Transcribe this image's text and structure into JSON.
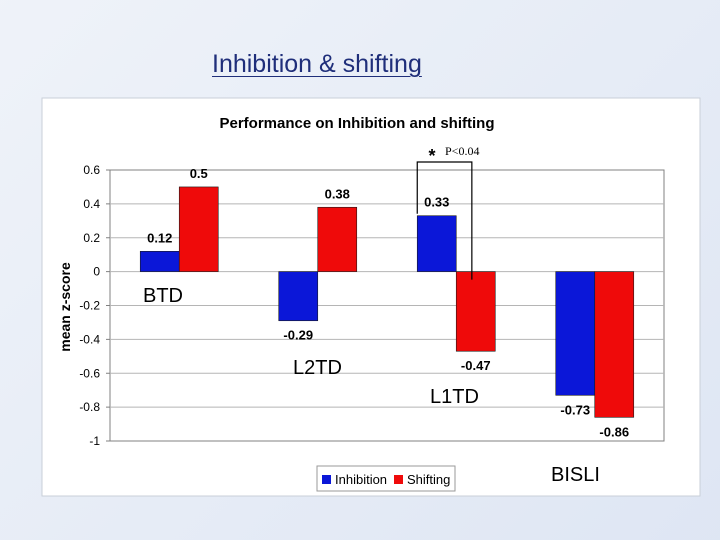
{
  "slide": {
    "title": "Inhibition & shifting"
  },
  "chart_data": {
    "type": "bar",
    "title": "Performance on Inhibition and shifting",
    "xlabel": "",
    "ylabel": "mean z-score",
    "categories": [
      "BTD",
      "L2TD",
      "L1TD",
      "BISLI"
    ],
    "series": [
      {
        "name": "Inhibition",
        "color": "#0b17d8",
        "values": [
          0.12,
          -0.29,
          0.33,
          -0.73
        ],
        "labels": [
          "0.12",
          "-0.29",
          "0.33",
          "-0.73"
        ]
      },
      {
        "name": "Shifting",
        "color": "#ef0a0a",
        "values": [
          0.5,
          0.38,
          -0.47,
          -0.86
        ],
        "labels": [
          "0.5",
          "0.38",
          "-0.47",
          "-0.86"
        ]
      }
    ],
    "ylim": [
      -1,
      0.6
    ],
    "yticks": [
      0.6,
      0.4,
      0.2,
      0,
      -0.2,
      -0.4,
      -0.6,
      -0.8,
      -1
    ],
    "ytick_labels": [
      "0.6",
      "0.4",
      "0.2",
      "0",
      "-0.2",
      "-0.4",
      "-0.6",
      "-0.8",
      "-1"
    ],
    "grid": true,
    "legend_position": "bottom",
    "annotation": {
      "star": "*",
      "text": "P<0.04"
    }
  }
}
